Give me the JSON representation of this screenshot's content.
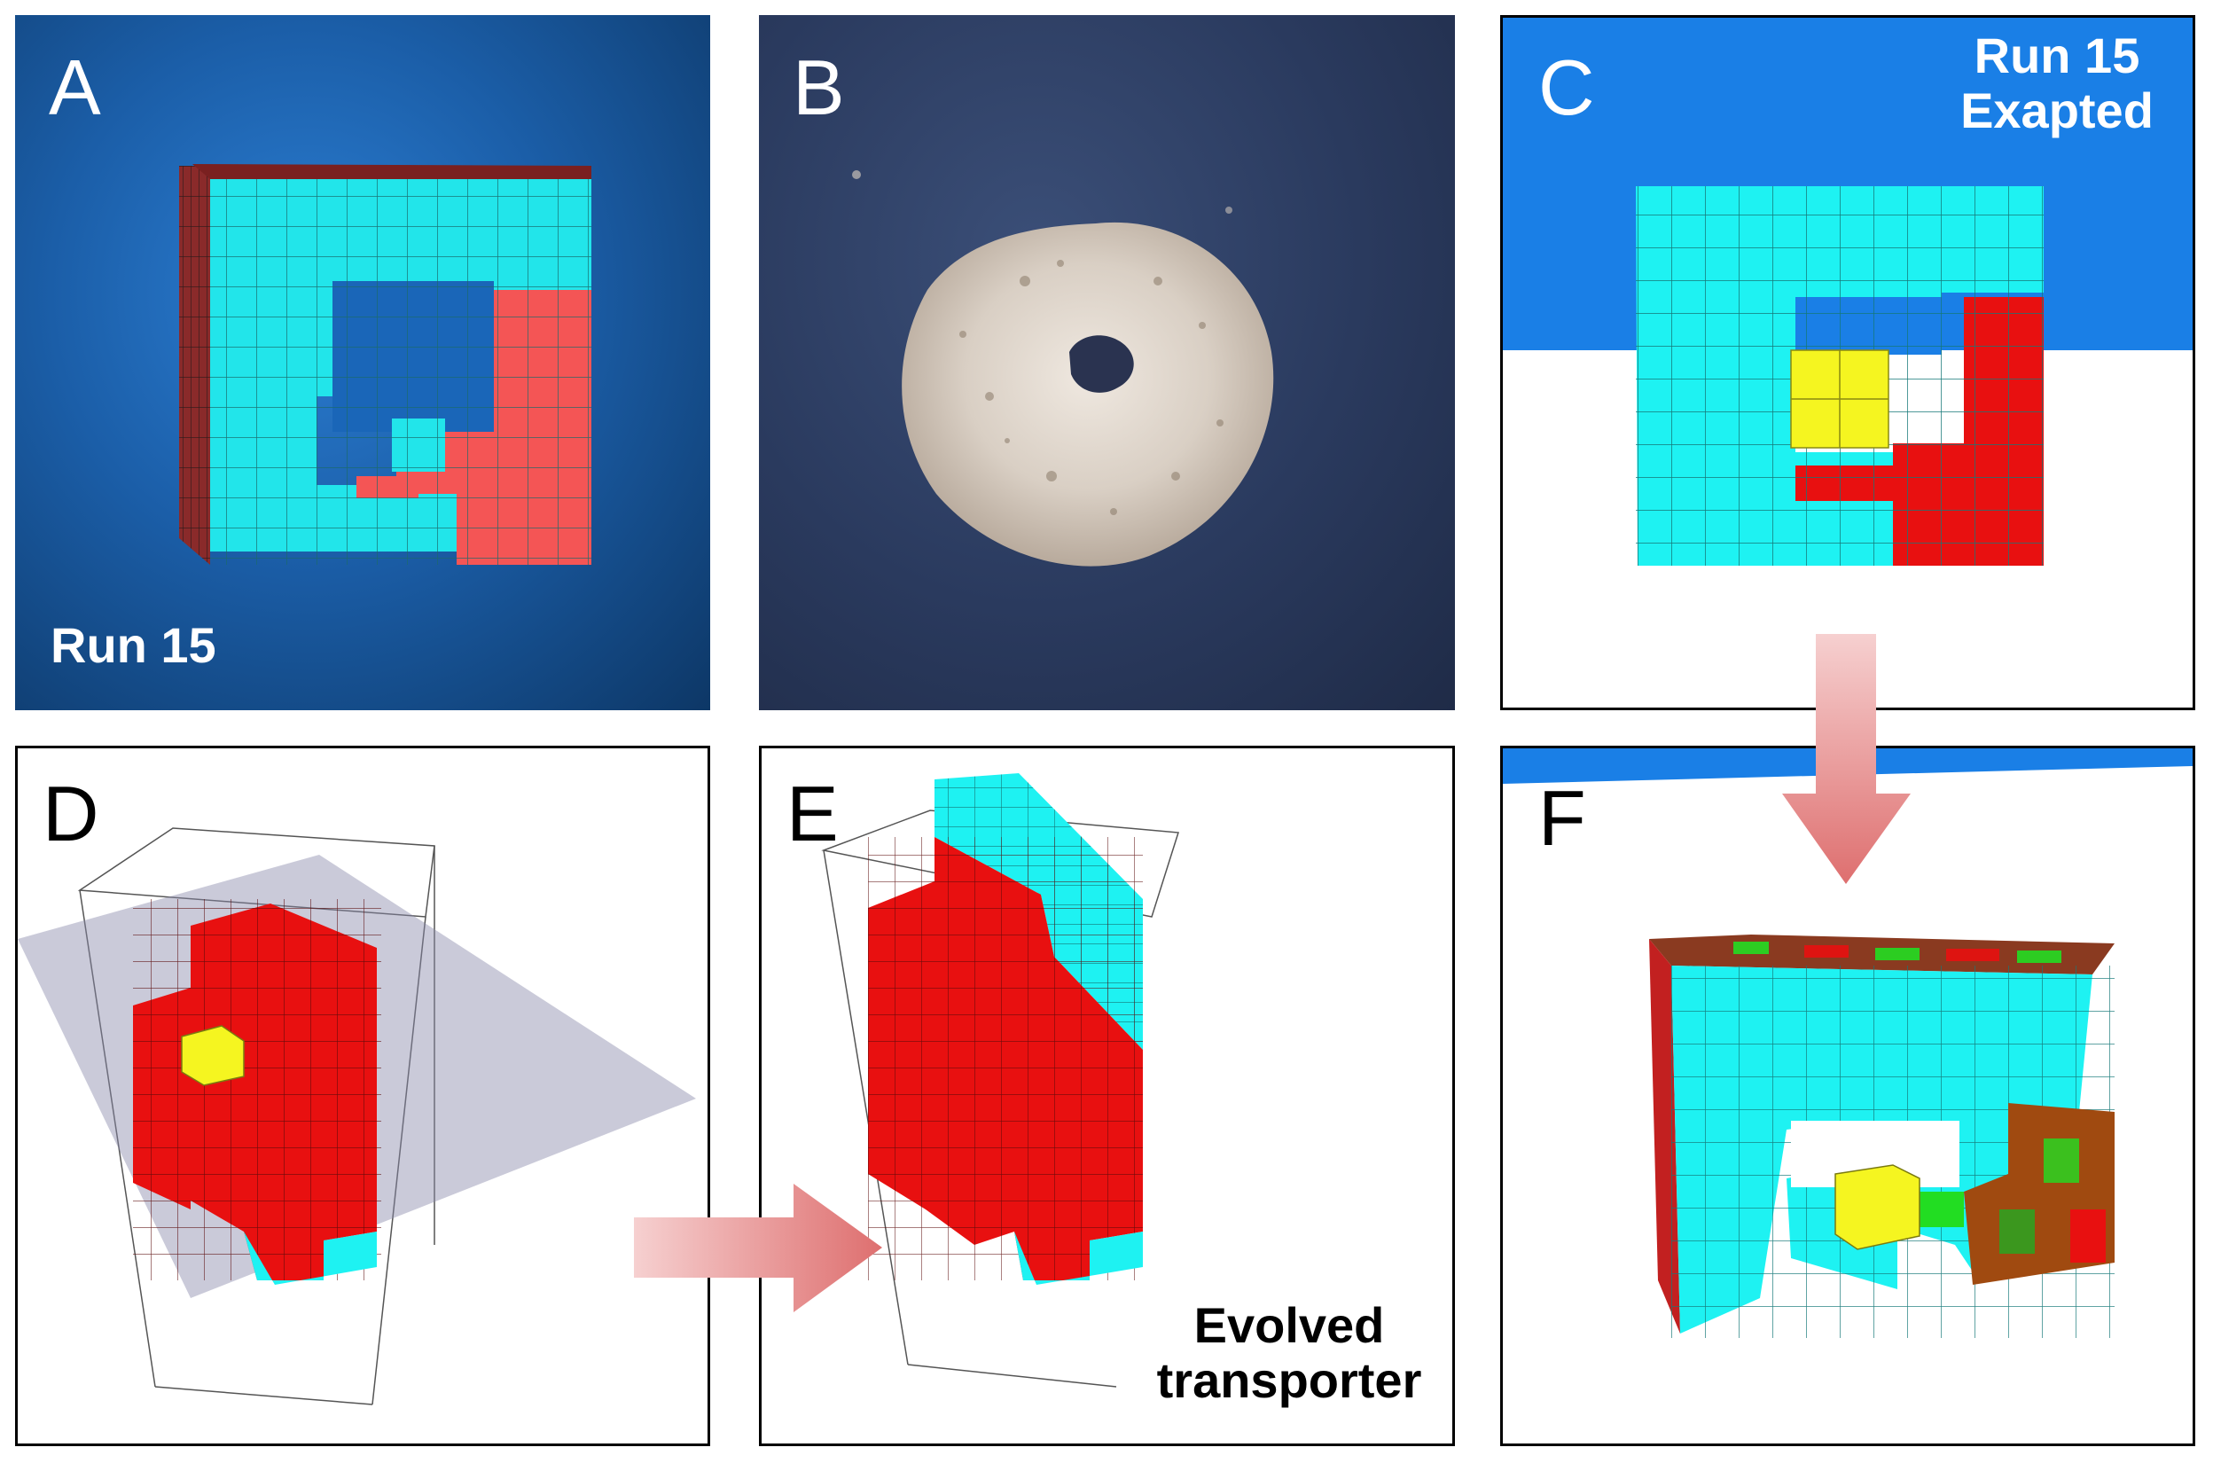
{
  "panels": {
    "A": {
      "letter": "A",
      "caption": "Run 15"
    },
    "B": {
      "letter": "B"
    },
    "C": {
      "letter": "C",
      "caption_line1": "Run 15",
      "caption_line2": "Exapted"
    },
    "D": {
      "letter": "D"
    },
    "E": {
      "letter": "E",
      "caption_line1": "Evolved",
      "caption_line2": "transporter"
    },
    "F": {
      "letter": "F"
    }
  },
  "colors": {
    "cyan": "#1ef2f2",
    "red": "#e81010",
    "salmon": "#f45a5a",
    "yellow": "#f5f520",
    "green": "#22dd22",
    "olive": "#8a6a10",
    "sky": "#1a7fe6",
    "arrow": "#e07a7a"
  }
}
